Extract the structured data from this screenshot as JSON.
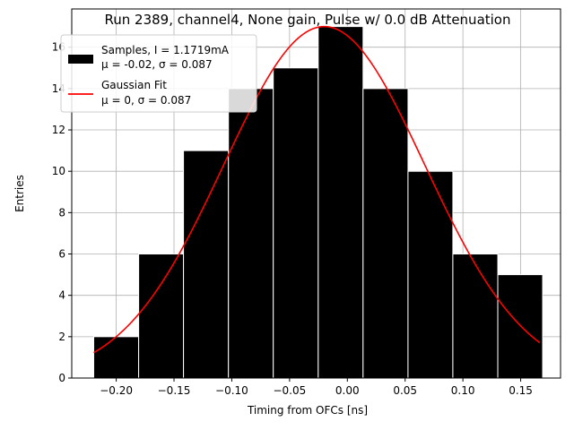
{
  "chart_data": {
    "type": "bar",
    "title": "Run 2389, channel4, None gain, Pulse w/ 0.0 dB Attenuation",
    "xlabel": "Timing from OFCs [ns]",
    "ylabel": "Entries",
    "xlim": [
      -0.2385,
      0.1845
    ],
    "ylim": [
      0,
      17.85
    ],
    "grid": true,
    "legend_position": "top-left",
    "xticks": [
      -0.2,
      -0.15,
      -0.1,
      -0.05,
      0.0,
      0.05,
      0.1,
      0.15
    ],
    "xtick_labels": [
      "−0.20",
      "−0.15",
      "−0.10",
      "−0.05",
      "0.00",
      "0.05",
      "0.10",
      "0.15"
    ],
    "yticks": [
      0,
      2,
      4,
      6,
      8,
      10,
      12,
      14,
      16
    ],
    "ytick_labels": [
      "0",
      "2",
      "4",
      "6",
      "8",
      "10",
      "12",
      "14",
      "16"
    ],
    "histogram": {
      "bin_edges": [
        -0.2195,
        -0.1806,
        -0.1418,
        -0.1029,
        -0.0641,
        -0.0252,
        0.0136,
        0.0525,
        0.0913,
        0.1302,
        0.169
      ],
      "values": [
        2,
        6,
        11,
        14,
        15,
        17,
        14,
        10,
        6,
        5
      ],
      "color": "#000000",
      "edgecolor": "#ffffff"
    },
    "fit": {
      "x_range": [
        -0.2195,
        0.1665
      ],
      "peak": 17,
      "mu": -0.02,
      "sigma": 0.087,
      "color": "#ff0000"
    },
    "legend": [
      {
        "kind": "patch",
        "color": "#000000",
        "line1": "Samples, I = 1.1719mA",
        "line2": "μ = -0.02, σ = 0.087"
      },
      {
        "kind": "line",
        "color": "#ff0000",
        "line1": "Gaussian Fit",
        "line2": "μ = 0, σ = 0.087"
      }
    ]
  }
}
